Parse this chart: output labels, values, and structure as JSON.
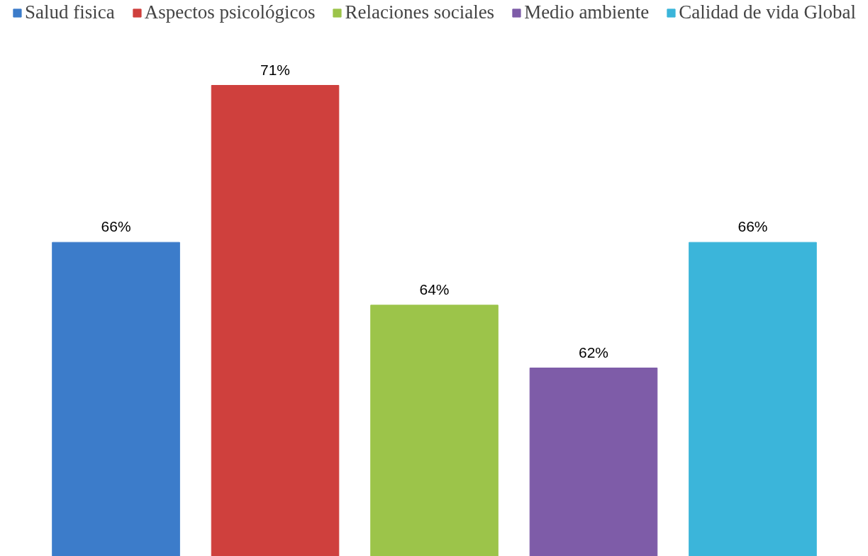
{
  "chart_data": {
    "type": "bar",
    "categories": [
      null
    ],
    "series": [
      {
        "name": "Salud fisica",
        "color": "#3c7cca",
        "values": [
          66
        ],
        "value_labels": [
          "66%"
        ]
      },
      {
        "name": "Aspectos psicológicos",
        "color": "#cf403d",
        "values": [
          71
        ],
        "value_labels": [
          "71%"
        ]
      },
      {
        "name": "Relaciones sociales",
        "color": "#9cc44a",
        "values": [
          64
        ],
        "value_labels": [
          "64%"
        ]
      },
      {
        "name": "Medio ambiente",
        "color": "#7e5ca8",
        "values": [
          62
        ],
        "value_labels": [
          "62%"
        ]
      },
      {
        "name": "Calidad de vida Global",
        "color": "#3bb5da",
        "values": [
          66
        ],
        "value_labels": [
          "66%"
        ]
      }
    ],
    "ylim": [
      56,
      71
    ],
    "legend": "top",
    "tick_labels": false
  }
}
